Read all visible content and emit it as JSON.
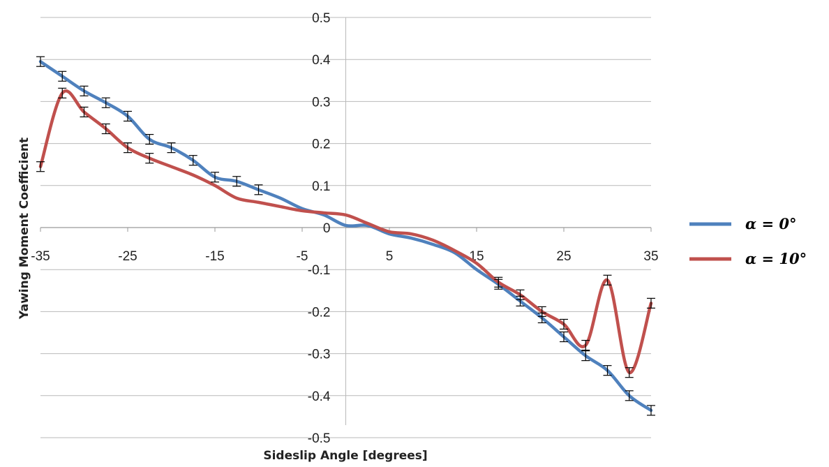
{
  "chart_data": {
    "type": "line",
    "xlabel": "Sideslip Angle [degrees]",
    "ylabel": "Yawing Moment Coefficient",
    "xlim": [
      -35,
      35
    ],
    "ylim": [
      -0.5,
      0.5
    ],
    "xticks": [
      "-35",
      "-25",
      "-15",
      "-5",
      "5",
      "15",
      "25",
      "35"
    ],
    "xtick_values": [
      -35,
      -25,
      -15,
      -5,
      5,
      15,
      25,
      35
    ],
    "yticks": [
      "0.5",
      "0.4",
      "0.3",
      "0.2",
      "0.1",
      "0",
      "-0.1",
      "-0.2",
      "-0.3",
      "-0.4",
      "-0.5"
    ],
    "ytick_values": [
      0.5,
      0.4,
      0.3,
      0.2,
      0.1,
      0,
      -0.1,
      -0.2,
      -0.3,
      -0.4,
      -0.5
    ],
    "grid": "horizontal",
    "legend_position": "right",
    "series": [
      {
        "name": "α = 0°",
        "color": "#4f81bd",
        "x": [
          -35,
          -32.5,
          -30,
          -27.5,
          -25,
          -22.5,
          -20,
          -17.5,
          -15,
          -12.5,
          -10,
          -7.5,
          -5,
          -2.5,
          0,
          2.5,
          5,
          7.5,
          10,
          12.5,
          15,
          17.5,
          20,
          22.5,
          25,
          27.5,
          30,
          32.5,
          35
        ],
        "y": [
          0.395,
          0.36,
          0.325,
          0.297,
          0.265,
          0.21,
          0.19,
          0.16,
          0.12,
          0.11,
          0.09,
          0.07,
          0.045,
          0.03,
          0.005,
          0.005,
          -0.015,
          -0.025,
          -0.04,
          -0.06,
          -0.1,
          -0.135,
          -0.175,
          -0.215,
          -0.26,
          -0.305,
          -0.34,
          -0.4,
          -0.435
        ],
        "error_bar_x": [
          -35,
          -32.5,
          -30,
          -27.5,
          -25,
          -22.5,
          -20,
          -17.5,
          -15,
          -12.5,
          -10,
          17.5,
          20,
          22.5,
          25,
          27.5,
          30,
          32.5,
          35
        ]
      },
      {
        "name": "α = 10°",
        "color": "#c0504d",
        "x": [
          -35,
          -32.5,
          -30,
          -27.5,
          -25,
          -22.5,
          -20,
          -17.5,
          -15,
          -12.5,
          -10,
          -7.5,
          -5,
          -2.5,
          0,
          2.5,
          5,
          7.5,
          10,
          12.5,
          15,
          17.5,
          20,
          22.5,
          25,
          27.5,
          30,
          32.5,
          35
        ],
        "y": [
          0.145,
          0.32,
          0.275,
          0.235,
          0.19,
          0.165,
          0.145,
          0.125,
          0.1,
          0.07,
          0.06,
          0.05,
          0.04,
          0.035,
          0.03,
          0.01,
          -0.01,
          -0.015,
          -0.03,
          -0.055,
          -0.085,
          -0.13,
          -0.16,
          -0.2,
          -0.23,
          -0.28,
          -0.125,
          -0.345,
          -0.18
        ],
        "error_bar_x": [
          -35,
          -32.5,
          -30,
          -27.5,
          -25,
          -22.5,
          17.5,
          20,
          22.5,
          25,
          27.5,
          30,
          32.5,
          35
        ]
      }
    ]
  }
}
